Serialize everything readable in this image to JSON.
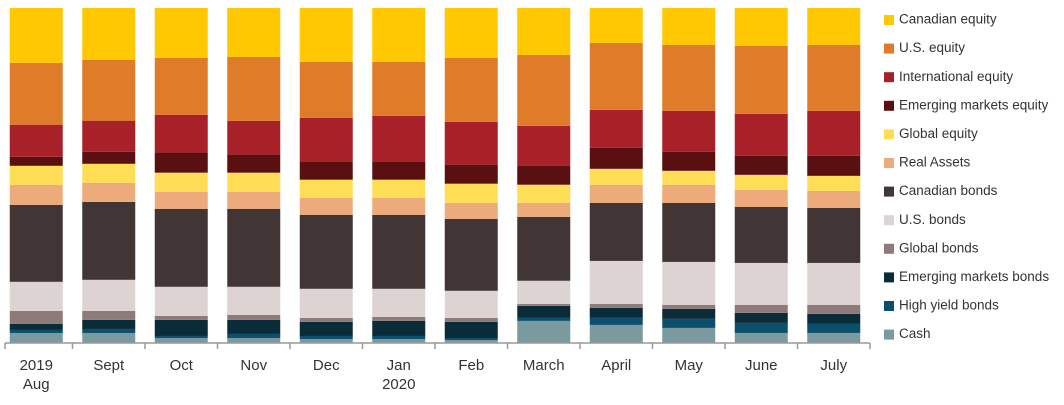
{
  "chart_data": {
    "type": "stacked_bar_100",
    "categories": [
      "2019\nAug",
      "Sept",
      "Oct",
      "Nov",
      "Dec",
      "Jan\n2020",
      "Feb",
      "March",
      "April",
      "May",
      "June",
      "July"
    ],
    "series": [
      {
        "name": "Canadian equity",
        "color": "#FFC800",
        "values": [
          16.4,
          15.5,
          14.9,
          14.6,
          16.1,
          16.1,
          14.9,
          14.0,
          10.4,
          11.0,
          11.3,
          11.0
        ]
      },
      {
        "name": "U.S. equity",
        "color": "#E07B2A",
        "values": [
          18.5,
          18.2,
          17.0,
          19.1,
          16.7,
          16.1,
          19.1,
          21.2,
          20.0,
          19.7,
          20.3,
          19.7
        ]
      },
      {
        "name": "International equity",
        "color": "#A82028",
        "values": [
          9.6,
          9.3,
          11.3,
          10.1,
          13.1,
          13.7,
          12.8,
          11.9,
          11.3,
          12.2,
          12.5,
          13.4
        ]
      },
      {
        "name": "Emerging markets equity",
        "color": "#5A1010",
        "values": [
          2.7,
          3.6,
          6.0,
          5.4,
          5.4,
          5.4,
          5.7,
          5.7,
          6.3,
          5.7,
          5.7,
          6.0
        ]
      },
      {
        "name": "Global equity",
        "color": "#FFDD55",
        "values": [
          5.7,
          5.7,
          5.7,
          5.7,
          5.4,
          5.4,
          5.7,
          5.4,
          4.8,
          4.2,
          4.5,
          4.5
        ]
      },
      {
        "name": "Real Assets",
        "color": "#EDAA7A",
        "values": [
          6.0,
          5.7,
          5.1,
          5.1,
          5.1,
          5.1,
          4.8,
          4.2,
          5.4,
          5.4,
          5.1,
          5.1
        ]
      },
      {
        "name": "Canadian bonds",
        "color": "#413535",
        "values": [
          23.0,
          23.3,
          23.3,
          23.3,
          22.1,
          22.1,
          21.5,
          19.1,
          17.3,
          17.6,
          16.7,
          16.4
        ]
      },
      {
        "name": "U.S. bonds",
        "color": "#DDD3D3",
        "values": [
          8.7,
          9.3,
          8.7,
          8.4,
          8.7,
          8.4,
          8.1,
          6.9,
          12.8,
          12.8,
          12.5,
          12.5
        ]
      },
      {
        "name": "Global bonds",
        "color": "#8E7A78",
        "values": [
          3.9,
          2.7,
          1.2,
          1.5,
          1.2,
          1.2,
          1.2,
          0.6,
          1.2,
          1.2,
          2.4,
          2.7
        ]
      },
      {
        "name": "Emerging markets bonds",
        "color": "#0A2B38",
        "values": [
          1.8,
          2.7,
          4.8,
          4.2,
          4.2,
          4.5,
          4.8,
          3.6,
          3.0,
          3.0,
          3.0,
          3.0
        ]
      },
      {
        "name": "High yield bonds",
        "color": "#0B4F6C",
        "values": [
          0.9,
          1.2,
          0.6,
          1.2,
          0.9,
          0.9,
          0.6,
          0.9,
          2.1,
          2.7,
          3.0,
          2.7
        ]
      },
      {
        "name": "Cash",
        "color": "#7A9AA0",
        "values": [
          3.0,
          3.0,
          1.5,
          1.5,
          1.2,
          1.2,
          0.9,
          6.6,
          5.4,
          4.5,
          3.0,
          3.0
        ]
      }
    ]
  }
}
